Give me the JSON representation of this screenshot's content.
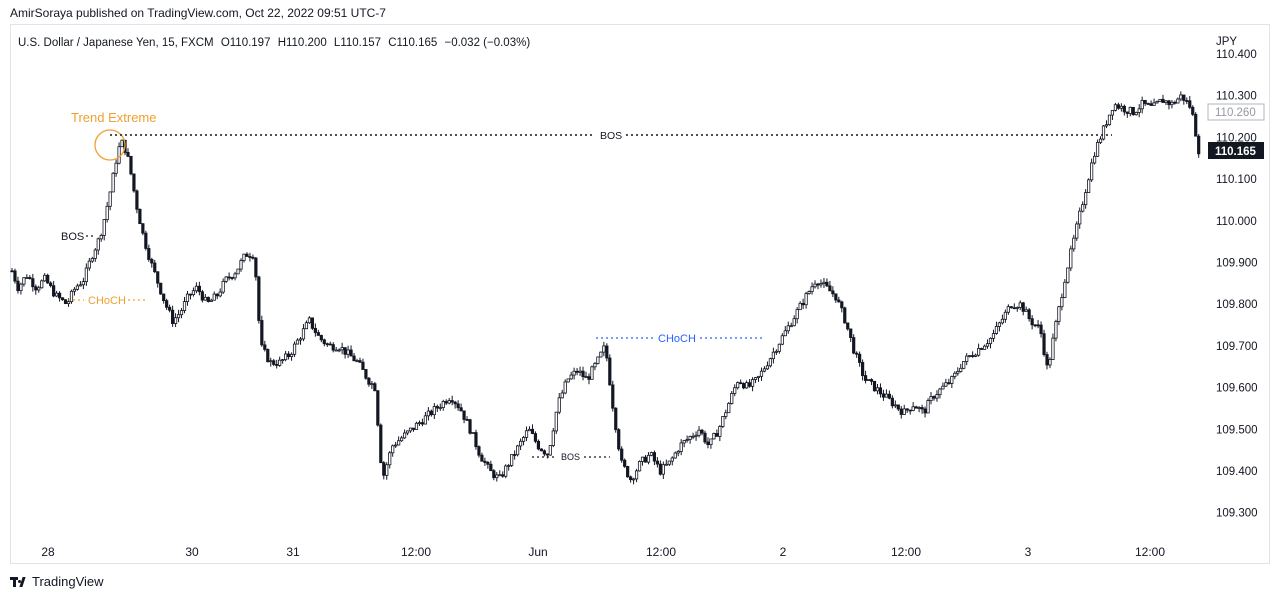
{
  "publish_line": "AmirSoraya published on TradingView.com, Oct 22, 2022 09:51 UTC-7",
  "footer_brand": "TradingView",
  "symbol": {
    "name": "U.S. Dollar / Japanese Yen, 15, FXCM",
    "open": "O110.197",
    "high": "H110.200",
    "low": "L110.157",
    "close": "C110.165",
    "change": "−0.032 (−0.03%)"
  },
  "colors": {
    "candle": "#131722",
    "bos": "#131722",
    "choch_orange": "#f0a030",
    "choch_blue": "#2962ff",
    "trend_extreme": "#f0a030",
    "last_price_bg": "#131722",
    "prev_price_border": "#b2b5be"
  },
  "chart_data": {
    "type": "candlestick",
    "currency_label": "JPY",
    "ylim": [
      109.22,
      110.42
    ],
    "y_ticks": [
      "110.400",
      "110.300",
      "110.200",
      "110.100",
      "110.000",
      "109.900",
      "109.800",
      "109.700",
      "109.600",
      "109.500",
      "109.400",
      "109.300"
    ],
    "x_ticks": [
      "28",
      "30",
      "31",
      "12:00",
      "Jun",
      "12:00",
      "2",
      "12:00",
      "3",
      "12:00"
    ],
    "last_price": "110.165",
    "prev_price": "110.260",
    "price_path": [
      [
        0,
        109.88
      ],
      [
        0.5,
        109.84
      ],
      [
        1.2,
        109.87
      ],
      [
        2,
        109.84
      ],
      [
        2.7,
        109.86
      ],
      [
        3.6,
        109.82
      ],
      [
        4.5,
        109.8
      ],
      [
        5.2,
        109.84
      ],
      [
        5.9,
        109.86
      ],
      [
        6.6,
        109.92
      ],
      [
        7.2,
        109.96
      ],
      [
        7.7,
        110.02
      ],
      [
        8.2,
        110.09
      ],
      [
        8.7,
        110.17
      ],
      [
        9.1,
        110.19
      ],
      [
        9.6,
        110.14
      ],
      [
        10.2,
        110.04
      ],
      [
        10.8,
        109.96
      ],
      [
        11.4,
        109.9
      ],
      [
        12,
        109.85
      ],
      [
        12.6,
        109.8
      ],
      [
        13.2,
        109.76
      ],
      [
        13.8,
        109.78
      ],
      [
        14.5,
        109.82
      ],
      [
        15.2,
        109.84
      ],
      [
        16,
        109.8
      ],
      [
        16.8,
        109.82
      ],
      [
        17.6,
        109.86
      ],
      [
        18.4,
        109.88
      ],
      [
        19.2,
        109.92
      ],
      [
        19.9,
        109.92
      ],
      [
        20.4,
        109.7
      ],
      [
        21.2,
        109.66
      ],
      [
        22,
        109.66
      ],
      [
        22.8,
        109.68
      ],
      [
        23.6,
        109.72
      ],
      [
        24.4,
        109.76
      ],
      [
        25.2,
        109.72
      ],
      [
        26,
        109.7
      ],
      [
        26.8,
        109.7
      ],
      [
        27.6,
        109.68
      ],
      [
        28.4,
        109.66
      ],
      [
        29.2,
        109.62
      ],
      [
        29.8,
        109.6
      ],
      [
        30.4,
        109.38
      ],
      [
        31.2,
        109.46
      ],
      [
        32,
        109.48
      ],
      [
        32.8,
        109.5
      ],
      [
        33.6,
        109.52
      ],
      [
        34.4,
        109.54
      ],
      [
        35.2,
        109.56
      ],
      [
        36,
        109.58
      ],
      [
        36.8,
        109.55
      ],
      [
        37.6,
        109.5
      ],
      [
        38.4,
        109.44
      ],
      [
        39.2,
        109.4
      ],
      [
        40,
        109.38
      ],
      [
        40.8,
        109.42
      ],
      [
        41.6,
        109.46
      ],
      [
        42.4,
        109.5
      ],
      [
        43.2,
        109.46
      ],
      [
        44,
        109.44
      ],
      [
        44.8,
        109.56
      ],
      [
        45.6,
        109.62
      ],
      [
        46.4,
        109.64
      ],
      [
        47.2,
        109.62
      ],
      [
        48,
        109.66
      ],
      [
        48.7,
        109.7
      ],
      [
        49.3,
        109.56
      ],
      [
        50,
        109.42
      ],
      [
        50.8,
        109.38
      ],
      [
        51.6,
        109.42
      ],
      [
        52.4,
        109.44
      ],
      [
        53.2,
        109.4
      ],
      [
        54,
        109.42
      ],
      [
        54.8,
        109.46
      ],
      [
        55.6,
        109.48
      ],
      [
        56.4,
        109.5
      ],
      [
        57.2,
        109.46
      ],
      [
        58,
        109.5
      ],
      [
        58.8,
        109.56
      ],
      [
        59.6,
        109.62
      ],
      [
        60.4,
        109.6
      ],
      [
        61.2,
        109.62
      ],
      [
        62,
        109.66
      ],
      [
        62.8,
        109.7
      ],
      [
        63.6,
        109.74
      ],
      [
        64.4,
        109.78
      ],
      [
        65.2,
        109.82
      ],
      [
        66,
        109.86
      ],
      [
        66.8,
        109.84
      ],
      [
        67.6,
        109.82
      ],
      [
        68.4,
        109.76
      ],
      [
        69.2,
        109.68
      ],
      [
        70,
        109.62
      ],
      [
        70.8,
        109.6
      ],
      [
        71.6,
        109.58
      ],
      [
        72.4,
        109.56
      ],
      [
        73.2,
        109.54
      ],
      [
        74,
        109.56
      ],
      [
        74.8,
        109.54
      ],
      [
        75.6,
        109.58
      ],
      [
        76.4,
        109.6
      ],
      [
        77.2,
        109.62
      ],
      [
        78,
        109.66
      ],
      [
        78.8,
        109.68
      ],
      [
        79.6,
        109.7
      ],
      [
        80.4,
        109.72
      ],
      [
        81.2,
        109.76
      ],
      [
        82,
        109.8
      ],
      [
        82.8,
        109.8
      ],
      [
        83.6,
        109.76
      ],
      [
        84.4,
        109.74
      ],
      [
        85,
        109.64
      ],
      [
        85.6,
        109.74
      ],
      [
        86.4,
        109.86
      ],
      [
        87.2,
        109.96
      ],
      [
        88,
        110.06
      ],
      [
        88.8,
        110.16
      ],
      [
        89.6,
        110.22
      ],
      [
        90.4,
        110.28
      ],
      [
        91.2,
        110.27
      ],
      [
        92,
        110.26
      ],
      [
        92.8,
        110.28
      ],
      [
        93.6,
        110.27
      ],
      [
        94.4,
        110.29
      ],
      [
        95.2,
        110.28
      ],
      [
        96,
        110.3
      ],
      [
        96.8,
        110.27
      ],
      [
        97.4,
        110.17
      ]
    ],
    "annotations": {
      "trend_extreme": "Trend Extreme",
      "bos_main": "BOS",
      "bos_left": "BOS",
      "choch_left": "CHoCH",
      "choch_mid": "CHoCH",
      "bos_low": "BOS"
    }
  }
}
